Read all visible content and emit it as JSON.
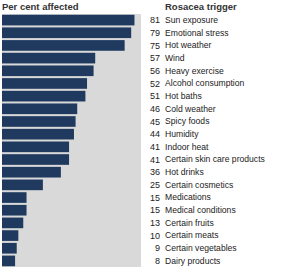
{
  "chart_data": {
    "type": "bar",
    "orientation": "horizontal",
    "x_label": "Per cent affected",
    "y_label": "Rosacea trigger",
    "categories": [
      "Sun exposure",
      "Emotional stress",
      "Hot weather",
      "Wind",
      "Heavy exercise",
      "Alcohol consumption",
      "Hot baths",
      "Cold weather",
      "Spicy foods",
      "Humidity",
      "Indoor heat",
      "Certain skin care products",
      "Hot drinks",
      "Certain cosmetics",
      "Medications",
      "Medical conditions",
      "Certain fruits",
      "Certain meats",
      "Certain vegetables",
      "Dairy products"
    ],
    "values": [
      81,
      79,
      75,
      57,
      56,
      52,
      51,
      46,
      45,
      44,
      41,
      41,
      36,
      25,
      15,
      15,
      13,
      10,
      9,
      8
    ],
    "color": "#1f3a5e",
    "xlim": [
      0,
      85
    ],
    "tick_labels": false,
    "data_labels": true,
    "grid": false
  }
}
